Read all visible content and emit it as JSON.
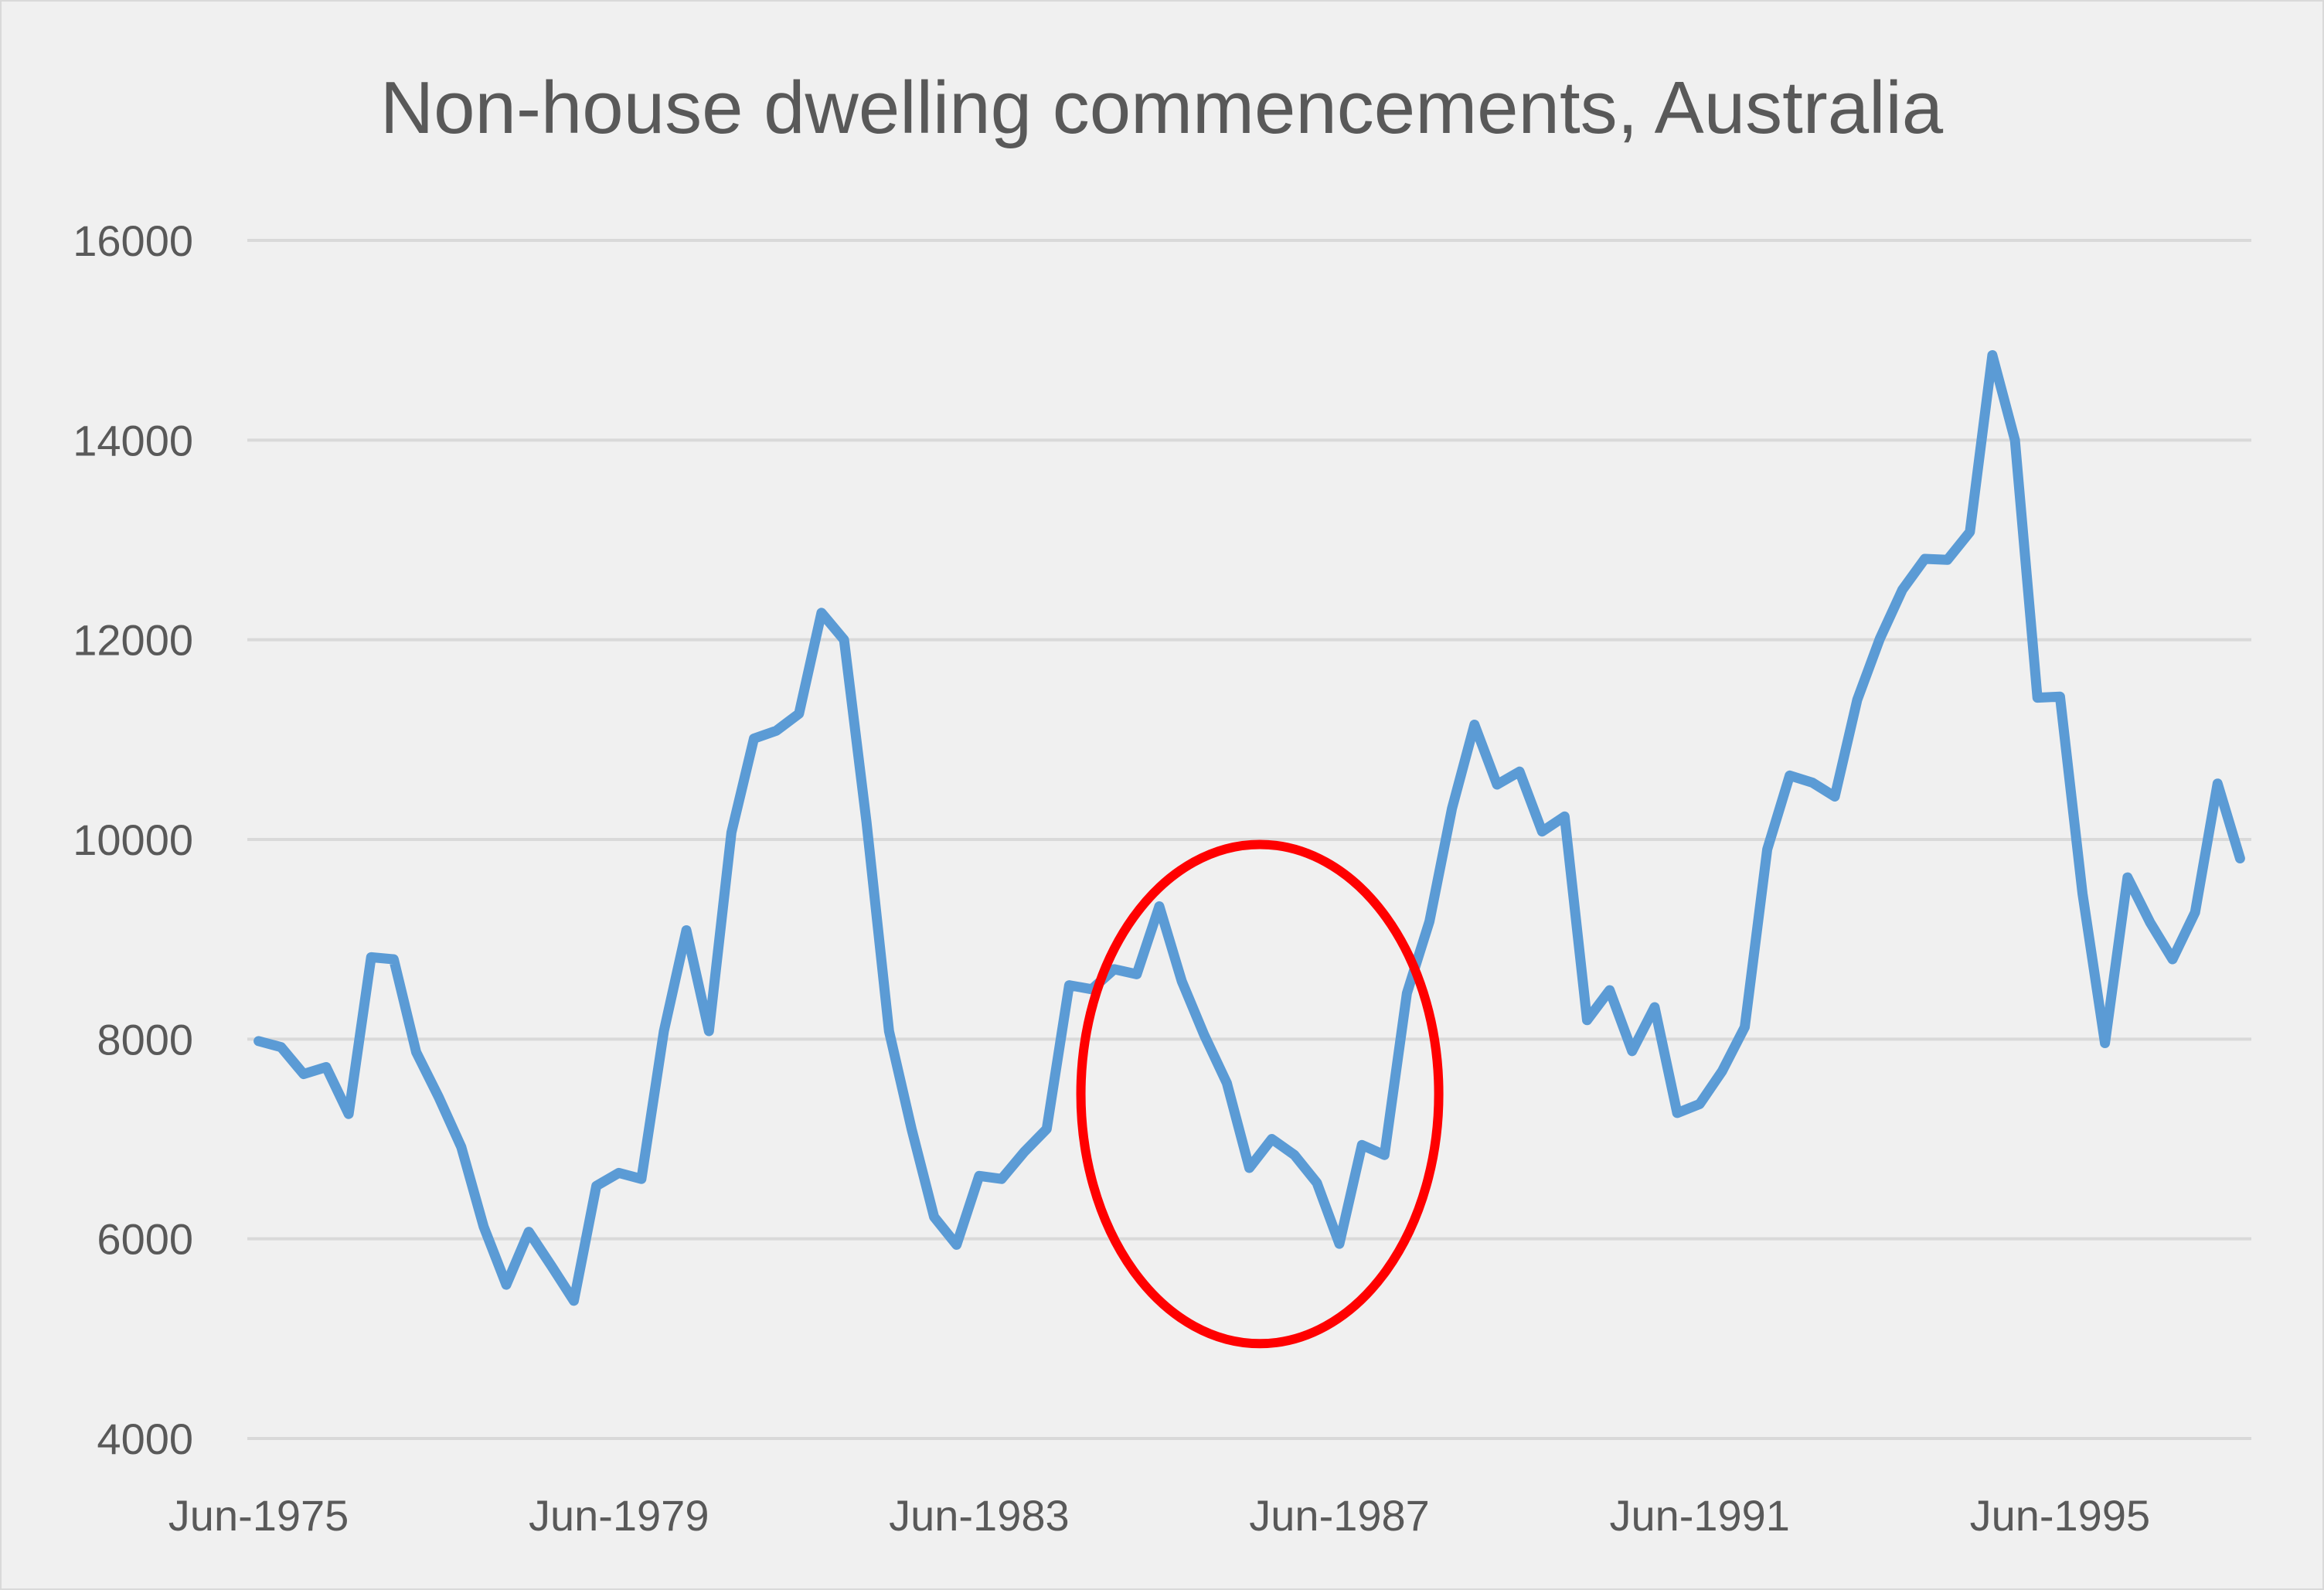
{
  "colors": {
    "background": "#f0f0f0",
    "gridline": "#d9d9d9",
    "series": "#5b9bd5",
    "annotation": "#ff0000",
    "text": "#595959"
  },
  "chart_data": {
    "type": "line",
    "title": "Non-house dwelling commencements, Australia",
    "xlabel": "",
    "ylabel": "",
    "ylim": [
      4000,
      16000
    ],
    "yticks": [
      4000,
      6000,
      8000,
      10000,
      12000,
      14000,
      16000
    ],
    "ytick_labels": [
      "4000",
      "6000",
      "8000",
      "10000",
      "12000",
      "14000",
      "16000"
    ],
    "xtick_labels": [
      {
        "label": "Jun-1975",
        "index": 0
      },
      {
        "label": "Jun-1979",
        "index": 16
      },
      {
        "label": "Jun-1983",
        "index": 32
      },
      {
        "label": "Jun-1987",
        "index": 48
      },
      {
        "label": "Jun-1991",
        "index": 64
      },
      {
        "label": "Jun-1995",
        "index": 80
      }
    ],
    "grid": true,
    "legend": "none",
    "x_frequency": "quarterly",
    "x_start": "Jun-1975",
    "series": [
      {
        "name": "Non-house dwelling commencements",
        "values": [
          7980,
          7920,
          7650,
          7720,
          7250,
          8820,
          8800,
          7870,
          7420,
          6920,
          6120,
          5540,
          6070,
          5730,
          5380,
          6530,
          6660,
          6600,
          8080,
          9090,
          8080,
          10070,
          11010,
          11090,
          11260,
          12270,
          12000,
          10170,
          8080,
          7100,
          6220,
          5940,
          6630,
          6600,
          6870,
          7100,
          8540,
          8500,
          8700,
          8650,
          9330,
          8580,
          8040,
          7560,
          6710,
          7000,
          6840,
          6560,
          5950,
          6940,
          6840,
          8460,
          9180,
          10310,
          11150,
          10550,
          10680,
          10080,
          10230,
          8190,
          8490,
          7880,
          8320,
          7260,
          7350,
          7680,
          8120,
          9900,
          10640,
          10570,
          10430,
          11400,
          12010,
          12500,
          12810,
          12800,
          13080,
          14850,
          14000,
          11420,
          11430,
          9460,
          7960,
          9620,
          9170,
          8800,
          9270,
          10560,
          9810
        ]
      }
    ],
    "annotation": {
      "shape": "ellipse",
      "description": "highlight around 1985-1987 dip",
      "from_index": 37,
      "to_index": 52,
      "y_range": [
        4950,
        9950
      ]
    }
  }
}
